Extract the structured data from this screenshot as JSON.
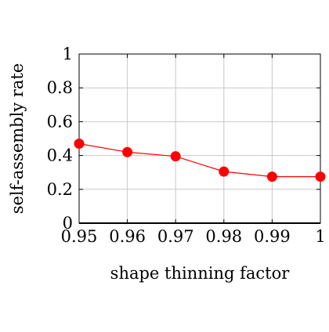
{
  "chart_data": {
    "type": "line",
    "title": "",
    "xlabel": "shape thinning factor",
    "ylabel": "self-assembly rate",
    "xlim": [
      0.95,
      1.0
    ],
    "ylim": [
      0,
      1
    ],
    "x_ticks": [
      0.95,
      0.96,
      0.97,
      0.98,
      0.99,
      1.0
    ],
    "x_tick_labels": [
      "0.95",
      "0.96",
      "0.97",
      "0.98",
      "0.99",
      "1"
    ],
    "y_ticks": [
      0,
      0.2,
      0.4,
      0.6,
      0.8,
      1.0
    ],
    "y_tick_labels": [
      "0",
      "0.2",
      "0.4",
      "0.6",
      "0.8",
      "1"
    ],
    "grid": true,
    "legend": "none",
    "series": [
      {
        "color": "#ff0000",
        "marker": "circle",
        "x": [
          0.95,
          0.96,
          0.97,
          0.98,
          0.99,
          1.0
        ],
        "y": [
          0.47,
          0.42,
          0.395,
          0.305,
          0.275,
          0.275
        ]
      }
    ]
  }
}
